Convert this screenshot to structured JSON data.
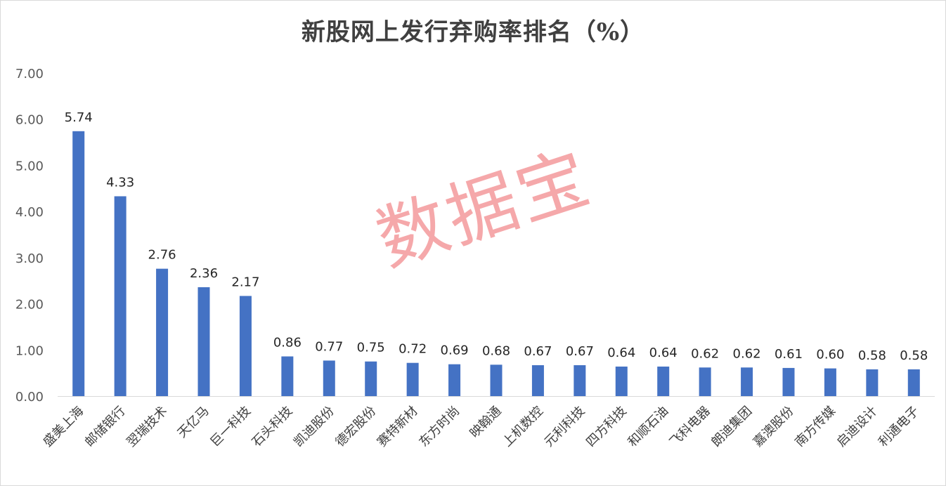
{
  "chart_data": {
    "type": "bar",
    "title": "新股网上发行弃购率排名（%）",
    "xlabel": "",
    "ylabel": "",
    "ylim": [
      0,
      7
    ],
    "yticks": [
      "0.00",
      "1.00",
      "2.00",
      "3.00",
      "4.00",
      "5.00",
      "6.00",
      "7.00"
    ],
    "grid": false,
    "legend": "none",
    "bar_color": "#4472C4",
    "categories": [
      "盛美上海",
      "邮储银行",
      "翌瑞技术",
      "天亿马",
      "巨一科技",
      "石头科技",
      "凯迪股份",
      "德宏股份",
      "赛特新材",
      "东方时尚",
      "映翰通",
      "上机数控",
      "元利科技",
      "四方科技",
      "和顺石油",
      "飞科电器",
      "朗迪集团",
      "嘉澳股份",
      "南方传媒",
      "启迪设计",
      "利通电子"
    ],
    "values": [
      5.74,
      4.33,
      2.76,
      2.36,
      2.17,
      0.86,
      0.77,
      0.75,
      0.72,
      0.69,
      0.68,
      0.67,
      0.67,
      0.64,
      0.64,
      0.62,
      0.62,
      0.61,
      0.6,
      0.58,
      0.58
    ],
    "value_labels": [
      "5.74",
      "4.33",
      "2.76",
      "2.36",
      "2.17",
      "0.86",
      "0.77",
      "0.75",
      "0.72",
      "0.69",
      "0.68",
      "0.67",
      "0.67",
      "0.64",
      "0.64",
      "0.62",
      "0.62",
      "0.61",
      "0.60",
      "0.58",
      "0.58"
    ]
  },
  "watermark": "数据宝"
}
